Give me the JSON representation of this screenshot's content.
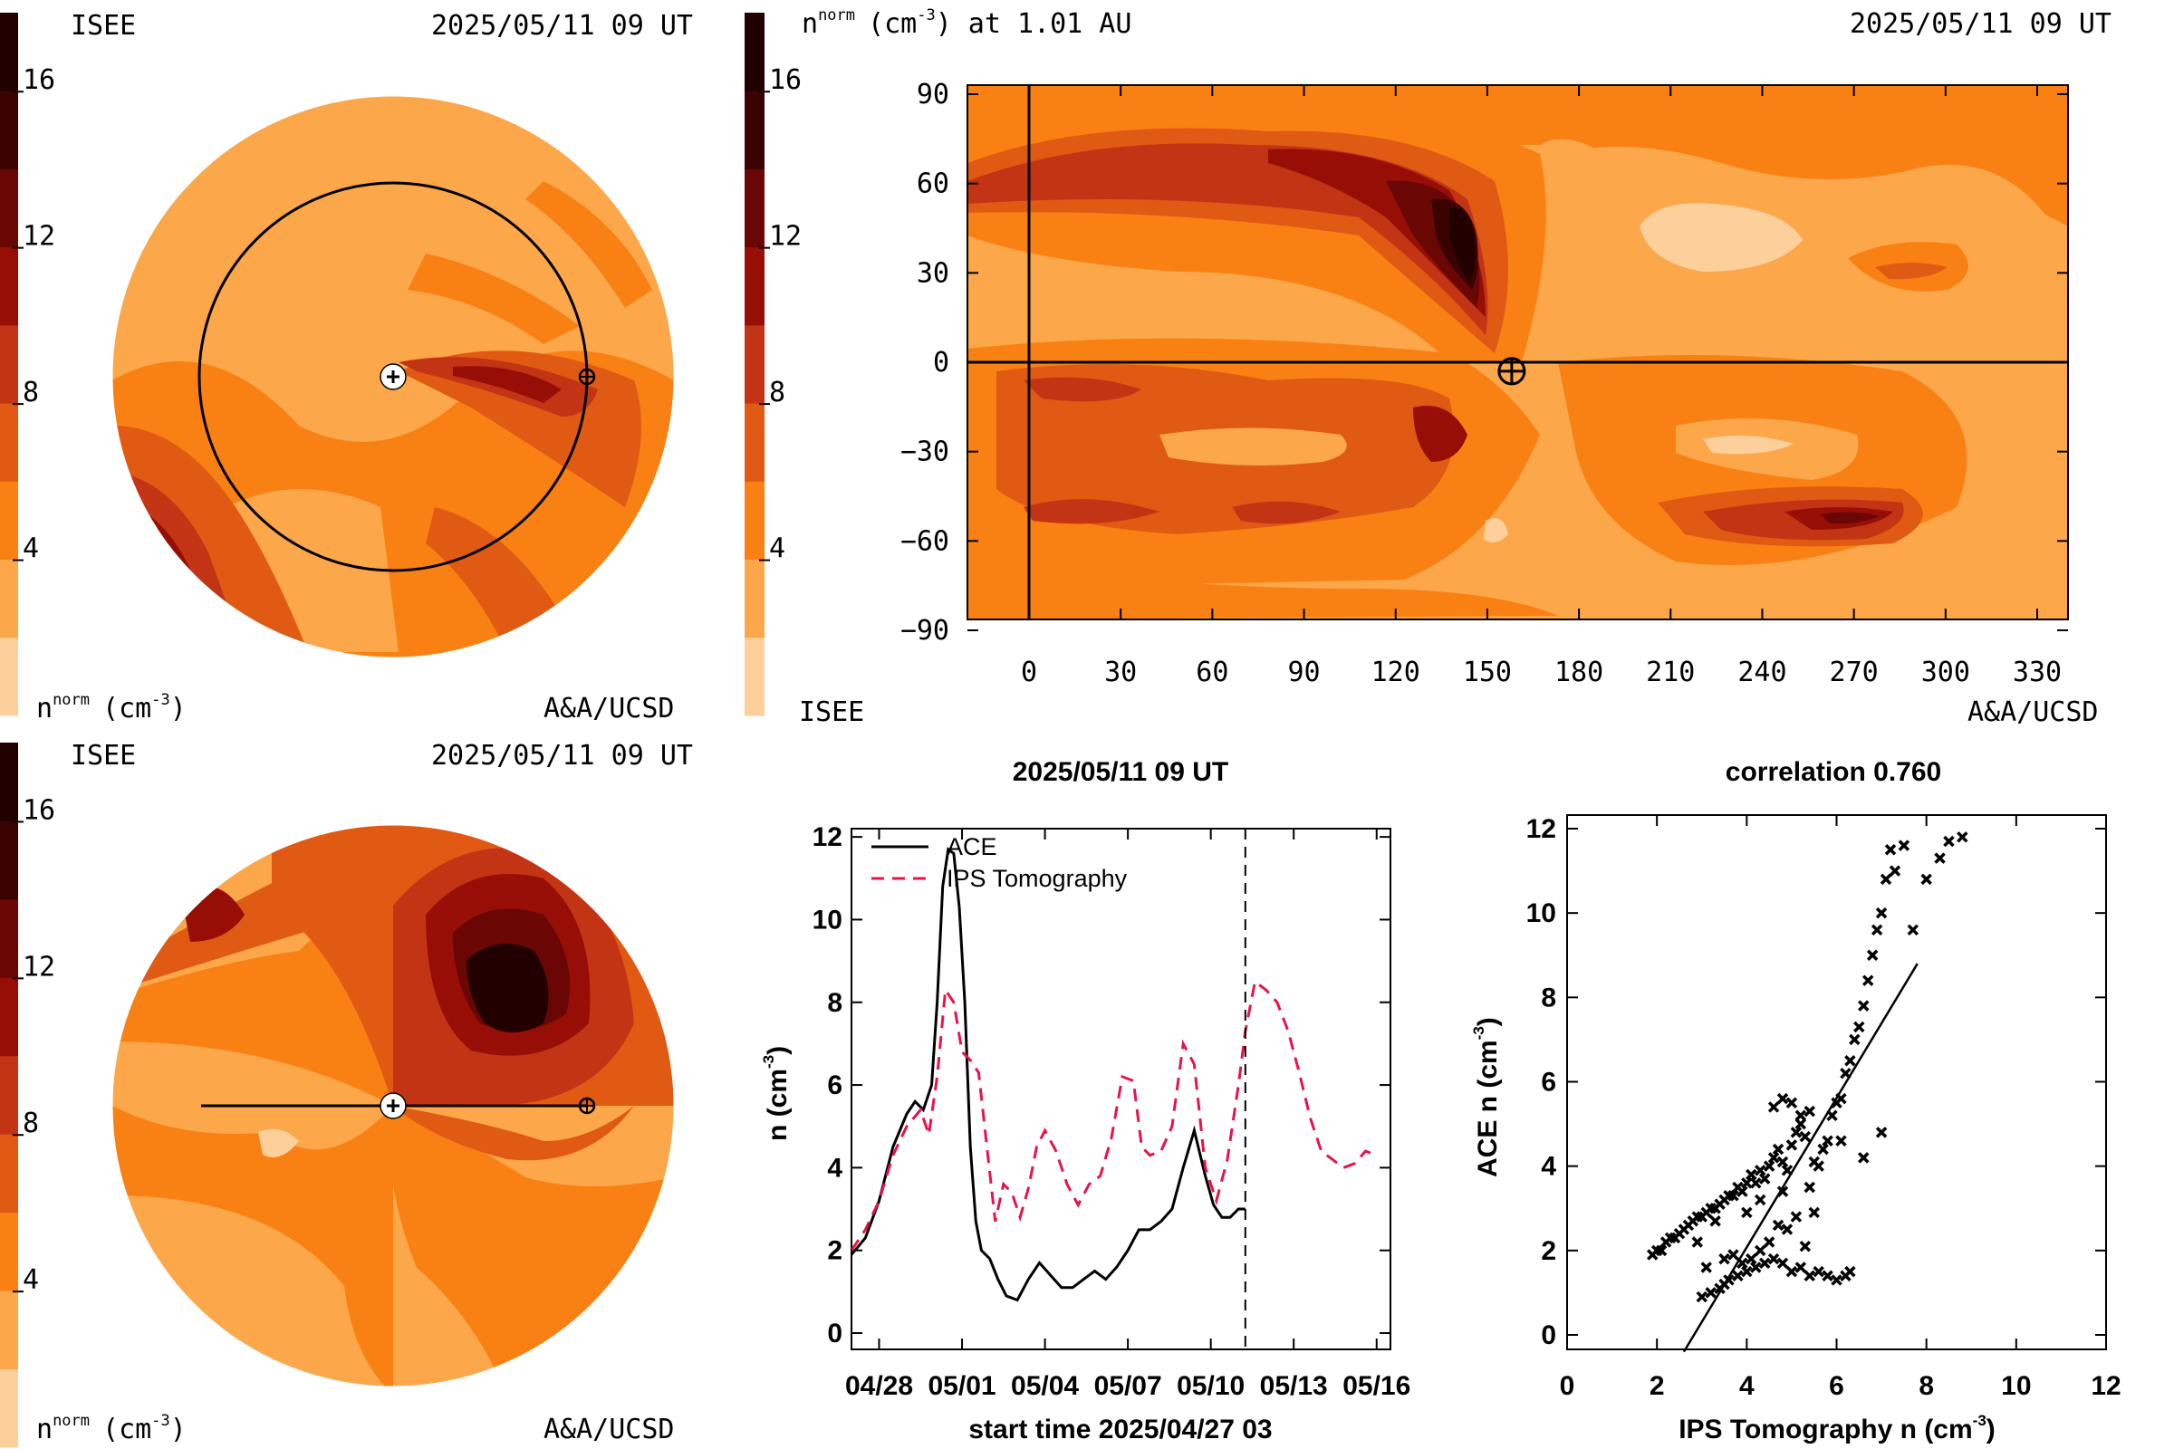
{
  "colors": {
    "c0": "#fdd09b",
    "c1": "#fca74a",
    "c2": "#f98114",
    "c3": "#e05a14",
    "c4": "#c23414",
    "c5": "#960e06",
    "c6": "#6a0704",
    "c7": "#3a0302",
    "c8": "#220000",
    "ace_line": "#000000",
    "ips_line": "#e8134a"
  },
  "colorbar": {
    "ticks": [
      "4",
      "8",
      "12",
      "16"
    ]
  },
  "panel_top_left": {
    "org": "ISEE",
    "datetime": "2025/05/11 09 UT",
    "unit_base": "n",
    "unit_sup": "norm",
    "unit_tail": "(cm",
    "unit_exp": "-3",
    "unit_close": ")",
    "credit": "A&A/UCSD"
  },
  "panel_bottom_left": {
    "org": "ISEE",
    "datetime": "2025/05/11 09 UT",
    "unit_base": "n",
    "unit_sup": "norm",
    "unit_tail": "(cm",
    "unit_exp": "-3",
    "unit_close": ")",
    "credit": "A&A/UCSD"
  },
  "synoptic_map": {
    "title_base": "n",
    "title_sup": "norm",
    "title_tail": "(cm",
    "title_exp": "-3",
    "title_close": ") at 1.01 AU",
    "datetime": "2025/05/11 09 UT",
    "org": "ISEE",
    "credit": "A&A/UCSD",
    "x_ticks": [
      "0",
      "30",
      "60",
      "90",
      "120",
      "150",
      "180",
      "210",
      "240",
      "270",
      "300",
      "330"
    ],
    "y_ticks": [
      "90",
      "60",
      "30",
      "0",
      "−30",
      "−60",
      "−90"
    ],
    "earth_lon": 158,
    "earth_lat": -3
  },
  "chart_data": [
    {
      "type": "line",
      "title": "2025/05/11 09 UT",
      "xlabel": "start time 2025/04/27 03",
      "ylabel": "n (cm-3)",
      "x_ticks": [
        "04/28",
        "05/01",
        "05/04",
        "05/07",
        "05/10",
        "05/13",
        "05/16"
      ],
      "x_tick_days": [
        1,
        4,
        7,
        10,
        13,
        16,
        19
      ],
      "y_ticks": [
        "0",
        "2",
        "4",
        "6",
        "8",
        "10",
        "12"
      ],
      "xlim_days": [
        0,
        19.5
      ],
      "ylim": [
        0,
        12
      ],
      "now_day": 14.25,
      "series": [
        {
          "name": "ACE",
          "x": [
            0,
            0.5,
            1,
            1.5,
            2,
            2.3,
            2.6,
            2.9,
            3.1,
            3.3,
            3.5,
            3.7,
            3.9,
            4.1,
            4.3,
            4.5,
            4.7,
            5,
            5.3,
            5.6,
            6,
            6.4,
            6.8,
            7.2,
            7.6,
            8,
            8.4,
            8.8,
            9.2,
            9.6,
            10,
            10.4,
            10.8,
            11.2,
            11.6,
            12,
            12.4,
            12.8,
            13.1,
            13.4,
            13.7,
            14.0,
            14.25
          ],
          "y": [
            1.9,
            2.3,
            3.2,
            4.5,
            5.3,
            5.6,
            5.4,
            6.0,
            8.0,
            10.8,
            11.7,
            11.6,
            10.3,
            8.0,
            4.5,
            2.7,
            2.0,
            1.8,
            1.3,
            0.9,
            0.8,
            1.3,
            1.7,
            1.4,
            1.1,
            1.1,
            1.3,
            1.5,
            1.3,
            1.6,
            2.0,
            2.5,
            2.5,
            2.7,
            3.0,
            4.0,
            4.9,
            3.8,
            3.1,
            2.8,
            2.8,
            3.0,
            3.0
          ]
        },
        {
          "name": "IPS Tomography",
          "x": [
            0,
            0.5,
            1,
            1.5,
            2,
            2.5,
            2.8,
            3.1,
            3.4,
            3.7,
            4.0,
            4.3,
            4.6,
            4.9,
            5.2,
            5.5,
            5.8,
            6.1,
            6.4,
            6.7,
            7.0,
            7.4,
            7.8,
            8.2,
            8.6,
            9,
            9.4,
            9.8,
            10.2,
            10.5,
            10.8,
            11.2,
            11.6,
            12,
            12.4,
            12.8,
            13.2,
            13.6,
            14,
            14.25,
            14.6,
            15,
            15.4,
            15.8,
            16.2,
            16.6,
            17,
            17.4,
            17.8,
            18.2,
            18.6,
            19.0
          ],
          "y": [
            2.0,
            2.5,
            3.2,
            4.3,
            5.0,
            5.4,
            4.8,
            6.2,
            8.3,
            8.0,
            6.8,
            6.6,
            6.3,
            4.5,
            2.7,
            3.6,
            3.4,
            2.8,
            3.5,
            4.5,
            4.9,
            4.4,
            3.6,
            3.1,
            3.6,
            3.8,
            4.7,
            6.2,
            6.1,
            4.5,
            4.3,
            4.4,
            5.0,
            7.0,
            6.5,
            4.0,
            3.2,
            4.2,
            6.0,
            7.3,
            8.5,
            8.3,
            8.0,
            7.3,
            6.3,
            5.2,
            4.4,
            4.2,
            4.0,
            4.1,
            4.4,
            4.3
          ]
        }
      ],
      "legend": "top-left"
    },
    {
      "type": "scatter",
      "title": "correlation 0.760",
      "xlabel": "IPS Tomography n (cm-3)",
      "ylabel": "ACE n (cm-3)",
      "x_ticks": [
        "0",
        "2",
        "4",
        "6",
        "8",
        "10",
        "12"
      ],
      "y_ticks": [
        "0",
        "2",
        "4",
        "6",
        "8",
        "10",
        "12"
      ],
      "xlim": [
        0,
        12
      ],
      "ylim": [
        0,
        12
      ],
      "fit_line": {
        "x": [
          2.6,
          7.8
        ],
        "y": [
          -0.4,
          8.8
        ]
      },
      "points": {
        "x": [
          1.9,
          2.0,
          2.1,
          2.2,
          2.3,
          2.4,
          2.5,
          2.6,
          2.7,
          2.8,
          2.9,
          3.0,
          3.1,
          3.2,
          3.3,
          3.4,
          3.5,
          3.6,
          3.7,
          3.8,
          3.9,
          4.0,
          4.1,
          4.2,
          4.3,
          4.4,
          4.5,
          4.6,
          4.7,
          4.8,
          4.9,
          5.0,
          5.1,
          5.2,
          5.3,
          5.4,
          5.5,
          5.6,
          5.7,
          5.8,
          5.9,
          6.0,
          6.1,
          6.2,
          6.3,
          6.4,
          6.5,
          6.6,
          6.7,
          6.8,
          6.9,
          7.0,
          7.1,
          7.2,
          7.3,
          7.5,
          7.7,
          8.0,
          8.3,
          8.5,
          8.8,
          3.0,
          3.2,
          3.4,
          3.5,
          3.6,
          3.8,
          4.0,
          4.2,
          4.4,
          4.6,
          4.8,
          5.0,
          5.2,
          5.4,
          5.6,
          5.8,
          6.0,
          6.2,
          6.3,
          3.5,
          3.7,
          3.9,
          4.1,
          4.3,
          4.5,
          4.7,
          4.9,
          5.1,
          5.3,
          4.6,
          4.8,
          5.0,
          5.2,
          5.4,
          2.9,
          3.1,
          3.3,
          4.0,
          4.3,
          4.8,
          5.5,
          6.1,
          6.6,
          7.0
        ],
        "y": [
          1.9,
          2.0,
          2.0,
          2.2,
          2.3,
          2.3,
          2.4,
          2.5,
          2.6,
          2.7,
          2.8,
          2.8,
          2.9,
          3.0,
          3.0,
          3.1,
          3.2,
          3.3,
          3.3,
          3.5,
          3.4,
          3.6,
          3.8,
          3.6,
          3.9,
          3.7,
          4.0,
          4.2,
          4.4,
          4.1,
          3.9,
          4.5,
          4.8,
          5.0,
          4.7,
          3.5,
          2.9,
          4.0,
          4.4,
          4.6,
          5.2,
          5.5,
          5.6,
          6.2,
          6.5,
          7.0,
          7.3,
          7.8,
          8.4,
          9.0,
          9.6,
          10.0,
          10.8,
          11.5,
          11.0,
          11.6,
          9.6,
          10.8,
          11.3,
          11.7,
          11.8,
          0.9,
          1.0,
          1.1,
          1.2,
          1.3,
          1.4,
          1.5,
          1.6,
          1.7,
          1.8,
          1.7,
          1.5,
          1.6,
          1.4,
          1.5,
          1.4,
          1.3,
          1.4,
          1.5,
          1.8,
          1.9,
          1.7,
          1.8,
          2.0,
          2.2,
          2.6,
          2.5,
          2.8,
          2.1,
          5.4,
          5.6,
          5.5,
          5.2,
          5.3,
          2.2,
          1.6,
          2.7,
          2.9,
          3.2,
          3.4,
          4.1,
          4.6,
          4.2,
          4.8
        ]
      }
    }
  ]
}
